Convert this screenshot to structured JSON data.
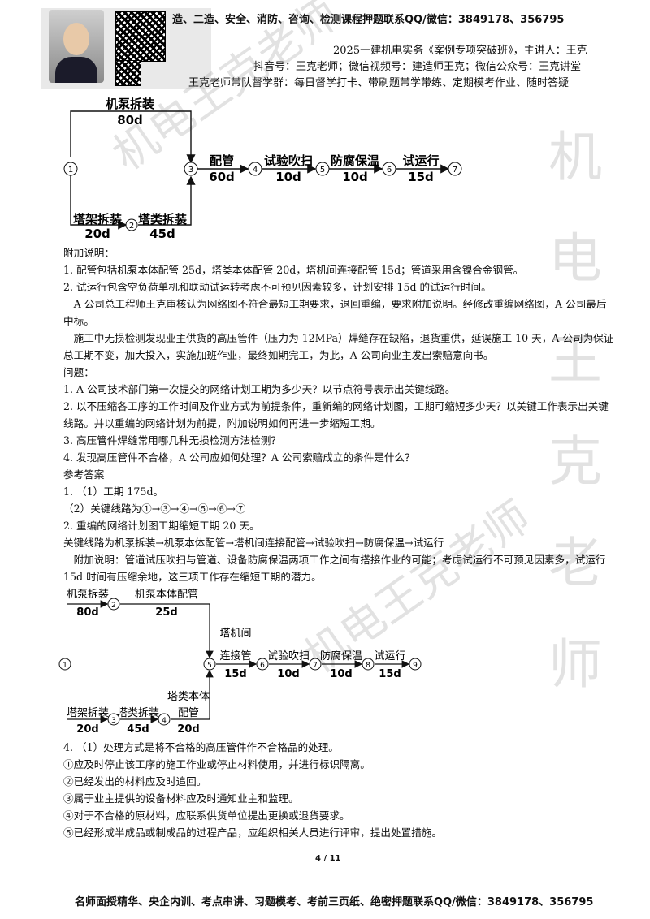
{
  "header": {
    "line1": "造、二造、安全、消防、咨询、检测课程押题联系QQ/微信：3849178、356795",
    "line2": "2025一建机电实务《案例专项突破班》，主讲人：王克",
    "line3": "抖音号：王克老师；微信视频号：建造师王克；微信公众号：王克讲堂",
    "line4": "王克老师带队督学群：每日督学打卡、带刷题带学带练、定期模考作业、随时答疑"
  },
  "diagram1": {
    "nodes": [
      "1",
      "2",
      "3",
      "4",
      "5",
      "6",
      "7"
    ],
    "activities": {
      "pump": "机泵拆装",
      "pump_d": "80d",
      "pipe": "配管",
      "pipe_d": "60d",
      "test": "试验吹扫",
      "test_d": "10d",
      "anti": "防腐保温",
      "anti_d": "10d",
      "run": "试运行",
      "run_d": "15d",
      "frame": "塔架拆装",
      "frame_d": "20d",
      "tower": "塔类拆装",
      "tower_d": "45d"
    }
  },
  "text": {
    "p1": "附加说明：",
    "p2": "1. 配管包括机泵本体配管 25d，塔类本体配管 20d，塔机间连接配管 15d；管道采用含镍合金钢管。",
    "p3": "2. 试运行包含空负荷单机和联动试运转考虑不可预见因素较多，计划安排 15d 的试运行时间。",
    "p4": "A 公司总工程师王克审核认为网络图不符合最短工期要求，退回重编，要求附加说明。经修改重编网络图，A 公司最后中标。",
    "p5": "施工中无损检测发现业主供货的高压管件（压力为 12MPa）焊缝存在缺陷，退货重供，延误施工 10 天，A 公司为保证总工期不变，加大投入，实施加班作业，最终如期完工，为此，A 公司向业主发出索赔意向书。",
    "p6": "问题：",
    "p7": "1. A 公司技术部门第一次提交的网络计划工期为多少天？以节点符号表示出关键线路。",
    "p8": "2. 以不压缩各工序的工作时间及作业方式为前提条件，重新编的网络计划图，工期可缩短多少天？以关键工作表示出关键线路。并以重编的网络计划为前提，附加说明如何再进一步缩短工期。",
    "p9": "3. 高压管件焊缝常用哪几种无损检测方法检测？",
    "p10": "4. 发现高压管件不合格，A 公司应如何处理？A 公司索赔成立的条件是什么？",
    "p11": "参考答案",
    "p12": "1. （1）工期 175d。",
    "p13": "（2）关键线路为①→③→④→⑤→⑥→⑦",
    "p14": "2. 重编的网络计划图工期缩短工期 20 天。",
    "p15": "关键线路为机泵拆装→机泵本体配管→塔机间连接配管→试验吹扫→防腐保温→试运行",
    "p16": "附加说明：管道试压吹扫与管道、设备防腐保温两项工作之间有搭接作业的可能；考虑试运行不可预见因素多，试运行 15d 时间有压缩余地，这三项工作存在缩短工期的潜力。"
  },
  "diagram2": {
    "nodes": [
      "1",
      "2",
      "3",
      "4",
      "5",
      "6",
      "7",
      "8",
      "9"
    ],
    "a_pump": "机泵拆装",
    "a_pump_d": "80d",
    "a_pumppipe": "机泵本体配管",
    "a_pumppipe_d": "25d",
    "a_link1": "塔机间",
    "a_link2": "连接管",
    "a_link_d": "15d",
    "a_test": "试验吹扫",
    "a_test_d": "10d",
    "a_anti": "防腐保温",
    "a_anti_d": "10d",
    "a_run": "试运行",
    "a_run_d": "15d",
    "a_frame": "塔架拆装",
    "a_frame_d": "20d",
    "a_tower": "塔类拆装",
    "a_tower_d": "45d",
    "a_towerpipe1": "塔类本体",
    "a_towerpipe2": "配管",
    "a_towerpipe_d": "20d"
  },
  "answer4": {
    "l1": "4. （1）处理方式是将不合格的高压管件作不合格品的处理。",
    "l2": "①应及时停止该工序的施工作业或停止材料使用，并进行标识隔离。",
    "l3": "②已经发出的材料应及时追回。",
    "l4": "③属于业主提供的设备材料应及时通知业主和监理。",
    "l5": "④对于不合格的原材料，应联系供货单位提出更换或退货要求。",
    "l6": "⑤已经形成半成品或制成品的过程产品，应组织相关人员进行评审，提出处置措施。"
  },
  "page": "4 / 11",
  "footer": "名师面授精华、央企内训、考点串讲、习题模考、考前三页纸、绝密押题联系QQ/微信：3849178、356795",
  "watermark": {
    "w1": "机",
    "w2": "电",
    "w3": "王",
    "w4": "克",
    "w5": "老",
    "w6": "师",
    "diag": "机电王克老师"
  }
}
